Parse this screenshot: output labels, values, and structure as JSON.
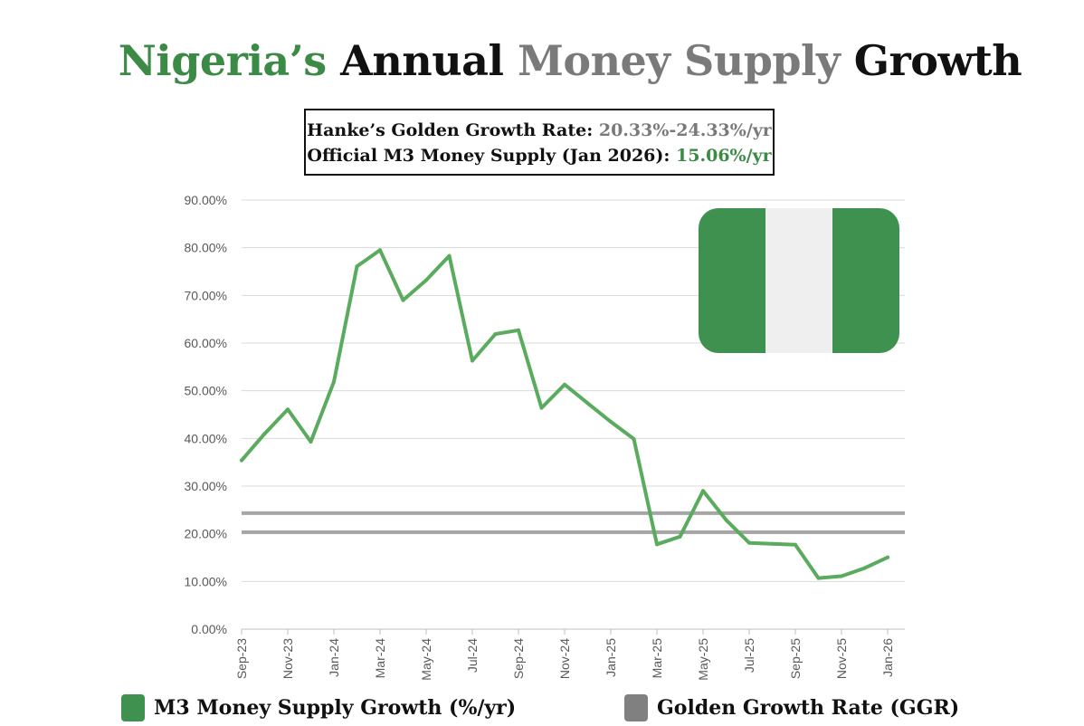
{
  "title": {
    "word1": "Nigeria’s",
    "word2": "Annual",
    "word3": "Money Supply",
    "word4": "Growth"
  },
  "infobox": {
    "line1_label": "Hanke’s Golden Growth Rate:",
    "line1_value": "20.33%-24.33%/yr",
    "line2_label": "Official M3 Money Supply (Jan 2026):",
    "line2_value": "15.06%/yr"
  },
  "colors": {
    "green": "#3b8a45",
    "line": "#5aab5e",
    "gray_text": "#7a7a7a",
    "ggr": "#a6a6a6",
    "flag_green": "#3f9150",
    "flag_white": "#efefef"
  },
  "chart_data": {
    "type": "line",
    "title": "Nigeria’s Annual Money Supply Growth",
    "xlabel": "",
    "ylabel": "",
    "ylim": [
      0,
      90
    ],
    "yticks": [
      "0.00%",
      "10.00%",
      "20.00%",
      "30.00%",
      "40.00%",
      "50.00%",
      "60.00%",
      "70.00%",
      "80.00%",
      "90.00%"
    ],
    "xtick_labels": [
      "Sep-23",
      "Nov-23",
      "Jan-24",
      "Mar-24",
      "May-24",
      "Jul-24",
      "Sep-24",
      "Nov-24",
      "Jan-25",
      "Mar-25",
      "May-25",
      "Jul-25",
      "Sep-25",
      "Nov-25",
      "Jan-26"
    ],
    "x": [
      "Sep-23",
      "Oct-23",
      "Nov-23",
      "Dec-23",
      "Jan-24",
      "Feb-24",
      "Mar-24",
      "Apr-24",
      "May-24",
      "Jun-24",
      "Jul-24",
      "Aug-24",
      "Sep-24",
      "Oct-24",
      "Nov-24",
      "Dec-24",
      "Jan-25",
      "Feb-25",
      "Mar-25",
      "Apr-25",
      "May-25",
      "Jun-25",
      "Jul-25",
      "Aug-25",
      "Sep-25",
      "Oct-25",
      "Nov-25",
      "Dec-25",
      "Jan-26"
    ],
    "series": [
      {
        "name": "M3 Money Supply Growth (%/yr)",
        "values": [
          35.4,
          41.0,
          46.1,
          39.3,
          51.9,
          76.1,
          79.5,
          69.0,
          73.2,
          78.3,
          56.3,
          61.9,
          62.7,
          46.4,
          51.3,
          47.4,
          43.5,
          39.9,
          17.8,
          19.4,
          29.0,
          22.9,
          18.1,
          17.9,
          17.7,
          10.7,
          11.1,
          12.8,
          15.06
        ]
      }
    ],
    "ggr_band": {
      "name": "Golden Growth Rate (GGR)",
      "lower": 20.33,
      "upper": 24.33
    },
    "grid": true,
    "legend_position": "bottom"
  },
  "legend": {
    "m3_label": "M3 Money Supply Growth (%/yr)",
    "ggr_label": "Golden Growth Rate (GGR)"
  }
}
